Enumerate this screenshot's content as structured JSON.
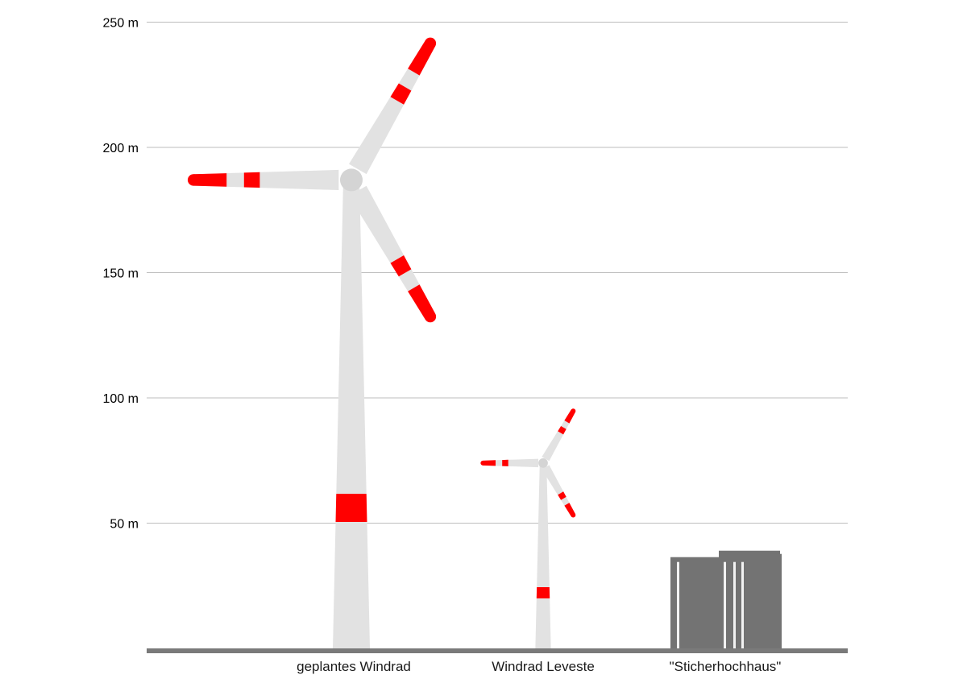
{
  "chart_data": {
    "type": "bar",
    "title": "",
    "xlabel": "",
    "ylabel": "",
    "ylim": [
      0,
      250
    ],
    "y_unit": "m",
    "y_ticks": [
      {
        "value": 50,
        "label": "50 m"
      },
      {
        "value": 100,
        "label": "100 m"
      },
      {
        "value": 150,
        "label": "150 m"
      },
      {
        "value": 200,
        "label": "200 m"
      },
      {
        "value": 250,
        "label": "250 m"
      }
    ],
    "grid": true,
    "categories": [
      "geplantes Windrad",
      "Windrad Leveste",
      "\"Sticherhochhaus\""
    ],
    "objects": [
      {
        "name": "geplantes Windrad",
        "kind": "turbine",
        "hub_height": 187,
        "rotor_radius": 63,
        "total_height": 250
      },
      {
        "name": "Windrad Leveste",
        "kind": "turbine",
        "hub_height": 74,
        "rotor_radius": 24,
        "total_height": 98
      },
      {
        "name": "\"Sticherhochhaus\"",
        "kind": "building",
        "height": 39
      }
    ]
  },
  "colors": {
    "tower": "#e2e2e2",
    "marking": "#ff0000",
    "building": "#737373",
    "ground": "#7a7a7a",
    "gridline": "#bdbdbd",
    "window_stripe": "#f2f2f2"
  }
}
